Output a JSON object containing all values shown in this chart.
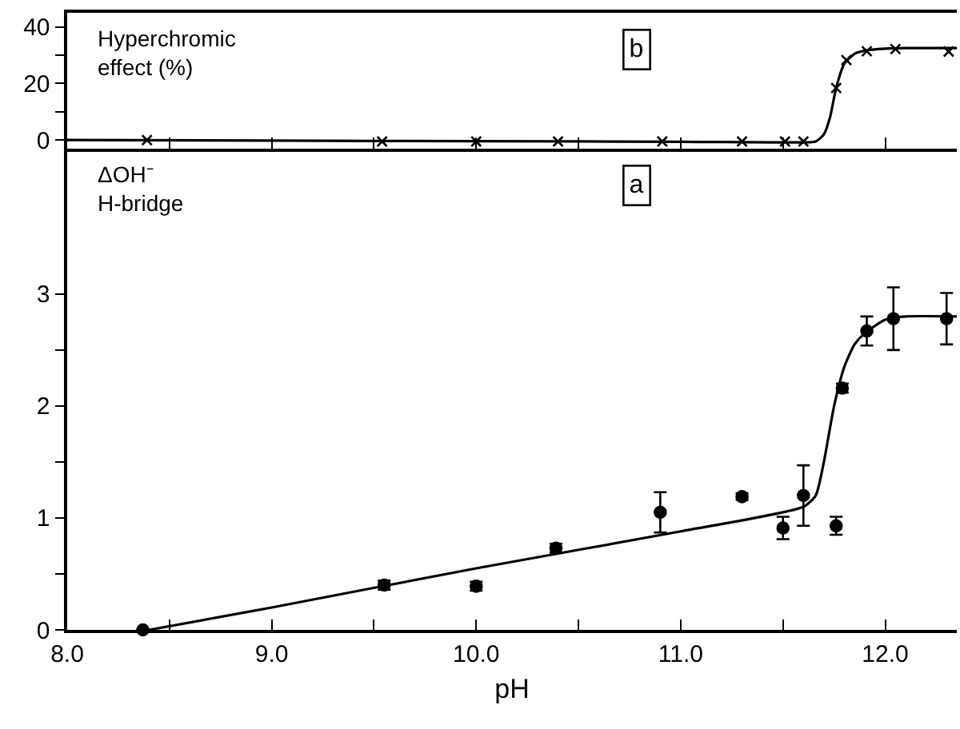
{
  "chart_data": [
    {
      "type": "scatter",
      "ylabel": "Hyperchromic\neffect (%)",
      "annotations": [
        "b"
      ],
      "marker": "cross",
      "grid": false,
      "tick_labels": "y",
      "xlim": [
        8.0,
        12.35
      ],
      "xticks": [
        {
          "value": 8.0,
          "label": null
        },
        {
          "value": 8.5,
          "label": null
        },
        {
          "value": 9.0,
          "label": null
        },
        {
          "value": 9.5,
          "label": null
        },
        {
          "value": 10.0,
          "label": null
        },
        {
          "value": 10.5,
          "label": null
        },
        {
          "value": 11.0,
          "label": null
        },
        {
          "value": 11.5,
          "label": null
        },
        {
          "value": 12.0,
          "label": null
        }
      ],
      "ylim": [
        -3,
        45
      ],
      "yticks": [
        0,
        {
          "value": 10,
          "label": null
        },
        20,
        {
          "value": 30,
          "label": null
        },
        40
      ],
      "series": [
        {
          "color": "#000000",
          "x": [
            8.39,
            9.54,
            10.0,
            10.4,
            10.91,
            11.3,
            11.51,
            11.6,
            11.76,
            11.81,
            11.91,
            12.05,
            12.31
          ],
          "values": [
            0,
            -0.5,
            -0.5,
            -0.5,
            -0.5,
            -0.5,
            -0.5,
            -0.5,
            18.4,
            28.3,
            31.4,
            32.2,
            31.3
          ]
        },
        {
          "type": "line",
          "marker": "none",
          "color": "#000000",
          "x": [
            8.0,
            9.0,
            10.0,
            11.0,
            11.6,
            11.66,
            11.7,
            11.73,
            11.76,
            11.8,
            11.85,
            11.9,
            12.0,
            12.1,
            12.35
          ],
          "values": [
            0,
            -0.2,
            -0.4,
            -0.6,
            -0.8,
            -0.5,
            2,
            8,
            18.4,
            27,
            30.5,
            31.6,
            32.3,
            32.5,
            32.5
          ]
        }
      ]
    },
    {
      "type": "scatter",
      "ylabel": "ΔOH⁻\nH-bridge",
      "xlabel": "pH",
      "annotations": [
        "a"
      ],
      "marker": "circle",
      "grid": false,
      "xlim": [
        8.0,
        12.35
      ],
      "xticks": [
        {
          "value": 8.0,
          "label": "8.0"
        },
        {
          "value": 8.5,
          "label": null
        },
        {
          "value": 9.0,
          "label": "9.0"
        },
        {
          "value": 9.5,
          "label": null
        },
        {
          "value": 10.0,
          "label": "10.0"
        },
        {
          "value": 10.5,
          "label": null
        },
        {
          "value": 11.0,
          "label": "11.0"
        },
        {
          "value": 11.5,
          "label": null
        },
        {
          "value": 12.0,
          "label": "12.0"
        }
      ],
      "ylim": [
        0,
        4.3
      ],
      "yticks": [
        0,
        {
          "value": 0.5,
          "label": null
        },
        1,
        {
          "value": 1.5,
          "label": null
        },
        2,
        {
          "value": 2.5,
          "label": null
        },
        3
      ],
      "series": [
        {
          "color": "#000000",
          "x": [
            8.37,
            9.55,
            10.0,
            10.39,
            10.9,
            11.3,
            11.5,
            11.6,
            11.76,
            11.79,
            11.91,
            12.04,
            12.3
          ],
          "values": [
            0,
            0.4,
            0.39,
            0.73,
            1.05,
            1.19,
            0.91,
            1.2,
            0.93,
            2.16,
            2.67,
            2.78,
            2.78
          ],
          "errors": [
            null,
            0.04,
            0.04,
            0.04,
            0.18,
            0.03,
            0.1,
            0.27,
            0.08,
            0.04,
            0.13,
            0.28,
            0.23
          ]
        },
        {
          "type": "line",
          "marker": "none",
          "color": "#000000",
          "x": [
            8.4,
            9.0,
            10.0,
            11.0,
            11.6,
            11.66,
            11.7,
            11.75,
            11.8,
            11.85,
            11.9,
            12.0,
            12.1,
            12.35
          ],
          "values": [
            0,
            0.2,
            0.55,
            0.88,
            1.1,
            1.2,
            1.5,
            2.0,
            2.35,
            2.55,
            2.65,
            2.77,
            2.8,
            2.8
          ]
        }
      ]
    }
  ]
}
